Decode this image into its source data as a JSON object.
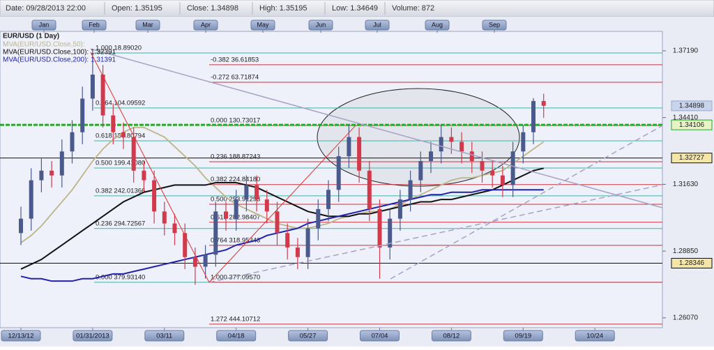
{
  "header": {
    "items": [
      "Date: 09/28/2013 22:00",
      "Open: 1.35195",
      "Close: 1.34898",
      "High: 1.35195",
      "Low: 1.34649",
      "Volume: 872"
    ]
  },
  "month_tabs": [
    "Jan",
    "Feb",
    "Mar",
    "Apr",
    "May",
    "Jun",
    "Jul",
    "Aug",
    "Sep"
  ],
  "chart_data": {
    "type": "candlestick",
    "title": "EUR/USD (1 Day)",
    "categories": [
      "12/13/12",
      null,
      null,
      null,
      null,
      null,
      null,
      "01/31/2013",
      null,
      null,
      null,
      null,
      null,
      null,
      "03/11",
      null,
      null,
      null,
      null,
      null,
      null,
      "04/18",
      null,
      null,
      null,
      null,
      null,
      null,
      "05/27",
      null,
      null,
      null,
      null,
      null,
      null,
      "07/04",
      null,
      null,
      null,
      null,
      null,
      null,
      "08/12",
      null,
      null,
      null,
      null,
      null,
      null,
      "09/19",
      null,
      null,
      null,
      null,
      null,
      null,
      "10/24"
    ],
    "open": [
      1.296,
      1.302,
      1.318,
      1.322,
      1.32,
      1.33,
      1.338,
      1.352,
      1.362,
      1.345,
      1.338,
      1.336,
      1.322,
      1.318,
      1.305,
      1.3,
      1.296,
      1.286,
      1.282,
      1.287,
      1.305,
      1.302,
      1.31,
      1.316,
      1.31,
      1.305,
      1.296,
      1.29,
      1.286,
      1.298,
      1.306,
      1.314,
      1.328,
      1.336,
      1.322,
      1.306,
      1.29,
      1.302,
      1.31,
      1.318,
      1.326,
      1.33,
      1.336,
      1.334,
      1.33,
      1.326,
      1.322,
      1.32,
      1.316,
      1.33,
      1.338,
      1.351,
      null,
      null,
      null,
      null,
      null
    ],
    "high": [
      1.307,
      1.323,
      1.327,
      1.326,
      1.335,
      1.343,
      1.357,
      1.371,
      1.366,
      1.35,
      1.342,
      1.34,
      1.326,
      1.322,
      1.309,
      1.304,
      1.3,
      1.29,
      1.291,
      1.309,
      1.309,
      1.314,
      1.32,
      1.32,
      1.314,
      1.309,
      1.3,
      1.294,
      1.302,
      1.31,
      1.318,
      1.332,
      1.341,
      1.34,
      1.326,
      1.31,
      1.306,
      1.314,
      1.322,
      1.33,
      1.334,
      1.341,
      1.34,
      1.338,
      1.334,
      1.33,
      1.326,
      1.324,
      1.334,
      1.341,
      1.3522,
      1.354,
      null,
      null,
      null,
      null,
      null
    ],
    "low": [
      1.291,
      1.297,
      1.313,
      1.315,
      1.315,
      1.325,
      1.333,
      1.347,
      1.34,
      1.333,
      1.331,
      1.317,
      1.313,
      1.3,
      1.295,
      1.291,
      1.281,
      1.2745,
      1.277,
      1.282,
      1.297,
      1.297,
      1.305,
      1.305,
      1.3,
      1.291,
      1.285,
      1.281,
      1.281,
      1.293,
      1.301,
      1.309,
      1.323,
      1.317,
      1.301,
      1.277,
      1.285,
      1.297,
      1.305,
      1.313,
      1.321,
      1.325,
      1.329,
      1.325,
      1.321,
      1.317,
      1.315,
      1.311,
      1.311,
      1.325,
      1.333,
      1.344,
      null,
      null,
      null,
      null,
      null
    ],
    "close": [
      1.302,
      1.318,
      1.322,
      1.32,
      1.33,
      1.338,
      1.352,
      1.362,
      1.345,
      1.338,
      1.336,
      1.322,
      1.318,
      1.305,
      1.3,
      1.296,
      1.286,
      1.282,
      1.287,
      1.305,
      1.302,
      1.31,
      1.316,
      1.31,
      1.305,
      1.296,
      1.29,
      1.286,
      1.298,
      1.306,
      1.314,
      1.328,
      1.336,
      1.322,
      1.306,
      1.29,
      1.302,
      1.31,
      1.318,
      1.326,
      1.33,
      1.336,
      1.334,
      1.33,
      1.326,
      1.322,
      1.32,
      1.316,
      1.33,
      1.338,
      1.351,
      1.349,
      null,
      null,
      null,
      null,
      null
    ],
    "up_color": "#4a5a8c",
    "down_color": "#d23a4c",
    "series": [
      {
        "name": "MVA(EUR/USD.Close,50):",
        "color": "#bdb588",
        "values": [
          1.292,
          1.295,
          1.299,
          1.304,
          1.309,
          1.314,
          1.32,
          1.326,
          1.331,
          1.335,
          1.338,
          1.34,
          1.34,
          1.338,
          1.336,
          1.332,
          1.328,
          1.324,
          1.319,
          1.315,
          1.311,
          1.308,
          1.306,
          1.304,
          1.302,
          1.3,
          1.299,
          1.298,
          1.298,
          1.299,
          1.3,
          1.302,
          1.303,
          1.304,
          1.305,
          1.305,
          1.306,
          1.308,
          1.31,
          1.312,
          1.314,
          1.316,
          1.318,
          1.319,
          1.319,
          1.32,
          1.321,
          1.322,
          1.325,
          1.328,
          1.331,
          1.334,
          null,
          null,
          null,
          null,
          null
        ]
      },
      {
        "name": "MVA(EUR/USD.Close,100): 1.32391",
        "color": "#111111",
        "values": [
          1.281,
          1.283,
          1.285,
          1.288,
          1.291,
          1.294,
          1.297,
          1.3,
          1.303,
          1.306,
          1.309,
          1.311,
          1.313,
          1.314,
          1.315,
          1.316,
          1.316,
          1.316,
          1.316,
          1.317,
          1.317,
          1.317,
          1.316,
          1.315,
          1.313,
          1.311,
          1.309,
          1.307,
          1.305,
          1.304,
          1.303,
          1.303,
          1.303,
          1.304,
          1.304,
          1.305,
          1.306,
          1.307,
          1.308,
          1.309,
          1.309,
          1.31,
          1.31,
          1.311,
          1.312,
          1.313,
          1.314,
          1.316,
          1.318,
          1.32,
          1.322,
          1.323,
          null,
          null,
          null,
          null,
          null
        ]
      },
      {
        "name": "MVA(EUR/USD.Close,200): 1.31391",
        "color": "#2222aa",
        "values": [
          1.278,
          1.277,
          1.277,
          1.276,
          1.276,
          1.276,
          1.277,
          1.277,
          1.278,
          1.279,
          1.279,
          1.28,
          1.281,
          1.282,
          1.283,
          1.284,
          1.285,
          1.286,
          1.287,
          1.288,
          1.289,
          1.291,
          1.292,
          1.293,
          1.295,
          1.296,
          1.297,
          1.298,
          1.3,
          1.301,
          1.302,
          1.303,
          1.304,
          1.305,
          1.306,
          1.307,
          1.308,
          1.309,
          1.31,
          1.311,
          1.312,
          1.312,
          1.313,
          1.313,
          1.313,
          1.314,
          1.314,
          1.314,
          1.314,
          1.314,
          1.314,
          1.314,
          null,
          null,
          null,
          null,
          null
        ]
      }
    ],
    "ylim": [
      1.2566,
      1.38
    ],
    "yticks": [
      {
        "value": 1.3719,
        "label": "1.37190"
      },
      {
        "value": 1.3441,
        "label": "1.34410"
      },
      {
        "value": 1.3163,
        "label": "1.31630"
      },
      {
        "value": 1.2885,
        "label": "1.28850"
      },
      {
        "value": 1.2607,
        "label": "1.26070"
      }
    ],
    "price_markers": [
      {
        "value": 1.34898,
        "label": "1.34898",
        "color": "#9aa8c8",
        "line": false
      },
      {
        "value": 1.34106,
        "label": "1.34106",
        "color": "#22aa22",
        "line": true
      },
      {
        "value": 1.32727,
        "label": "1.32727",
        "color": "#111111",
        "line": true
      },
      {
        "value": 1.28346,
        "label": "1.28346",
        "color": "#111111",
        "line": true
      }
    ],
    "fib_left": {
      "color": "#3bb3a8",
      "levels": [
        {
          "label": "1.000 18.89020",
          "value": 1.371
        },
        {
          "label": "0.764 104.09592",
          "value": 1.3481
        },
        {
          "label": "0.618 156.80794",
          "value": 1.3344
        },
        {
          "label": "0.500 199.41080",
          "value": 1.3231
        },
        {
          "label": "0.382 242.01366",
          "value": 1.3115
        },
        {
          "label": "0.236 294.72567",
          "value": 1.2979
        },
        {
          "label": "0.000 379.93140",
          "value": 1.2755
        }
      ]
    },
    "fib_right": {
      "color": "#c8323c",
      "levels": [
        {
          "label": "-0.382 36.61853",
          "value": 1.3661
        },
        {
          "label": "-0.272 63.71874",
          "value": 1.3588
        },
        {
          "label": "0.000 130.73017",
          "value": 1.3408
        },
        {
          "label": "0.236 188.87243",
          "value": 1.3257
        },
        {
          "label": "0.382 224.84180",
          "value": 1.3162
        },
        {
          "label": "0.500 253.91293",
          "value": 1.308
        },
        {
          "label": "0.618 282.98407",
          "value": 1.3005
        },
        {
          "label": "0.764 318.95343",
          "value": 1.2909
        },
        {
          "label": "1.000 377.09570",
          "value": 1.2755
        },
        {
          "label": "1.272 444.10712",
          "value": 1.2581
        }
      ]
    }
  }
}
